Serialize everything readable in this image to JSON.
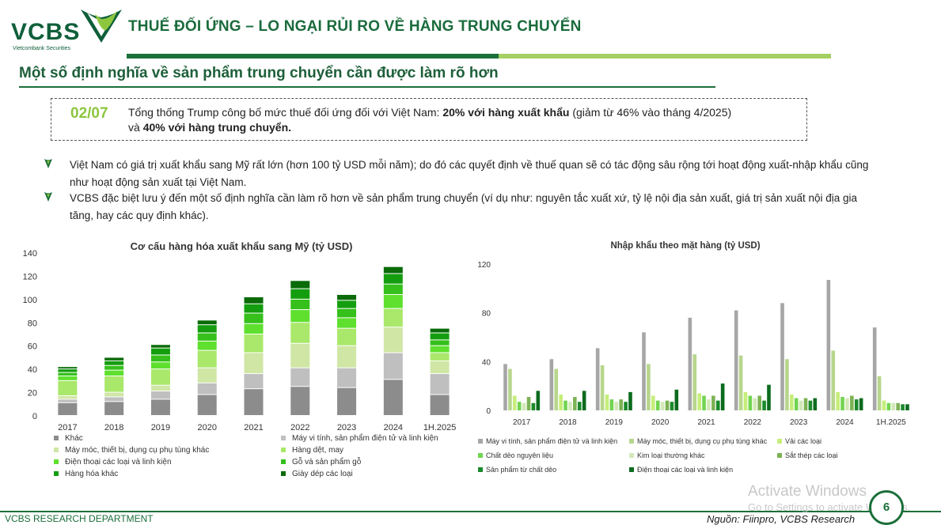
{
  "header": {
    "logo_text": "VCBS",
    "logo_subtext": "Vietcombank Securities",
    "title": "THUẾ ĐỐI ỨNG – LO NGẠI RỦI RO VỀ HÀNG TRUNG CHUYỂN"
  },
  "section": {
    "subtitle": "Một số định nghĩa về sản phẩm trung chuyển cần được làm rõ hơn"
  },
  "notice": {
    "date": "02/07",
    "text_part1": "Tổng thống Trump công bố mức thuế đối ứng đối với Việt Nam: ",
    "text_bold1": "20% với hàng xuất khẩu",
    "text_part2": " (giảm từ 46% vào tháng 4/2025)",
    "text_part3": "và ",
    "text_bold2": "40% với hàng trung chuyển."
  },
  "bullets": [
    "Việt Nam có giá trị xuất khẩu sang Mỹ rất lớn (hơn 100 tỷ USD mỗi năm); do đó các quyết định về thuế quan sẽ có tác động sâu rộng tới hoạt động xuất-nhập khẩu cũng như hoạt động sản xuất tại Việt Nam.",
    "VCBS đặc biệt lưu ý đến một số định nghĩa cần làm rõ hơn về sản phẩm trung chuyển (ví dụ như: nguyên tắc xuất xứ, tỷ lệ nội địa sản xuất, giá trị sản xuất nội địa gia tăng, hay các quy định khác)."
  ],
  "footer": {
    "department": "VCBS RESEARCH DEPARTMENT",
    "source": "Nguồn: Fiinpro, VCBS Research",
    "page_number": "6"
  },
  "overlay": {
    "line1": "Activate Windows",
    "line2": "Go to Settings to activate Windows."
  },
  "colors": {
    "brand_dark": "#1b6f3a",
    "brand_light": "#8dc63f"
  },
  "chart_data": [
    {
      "type": "bar",
      "stacked": true,
      "title": "Cơ cấu hàng hóa xuất khẩu sang Mỹ (tỷ USD)",
      "categories": [
        "2017",
        "2018",
        "2019",
        "2020",
        "2021",
        "2022",
        "2023",
        "2024",
        "1H.2025"
      ],
      "ylim": [
        0,
        140
      ],
      "yticks": [
        0,
        20,
        40,
        60,
        80,
        100,
        120,
        140
      ],
      "legend_position": "bottom",
      "series": [
        {
          "name": "Khác",
          "color": "#8c8c8c",
          "values": [
            11,
            12,
            14,
            18,
            23,
            25,
            24,
            31,
            18
          ]
        },
        {
          "name": "Máy vi tính, sản phẩm điện tử và linh kiện",
          "color": "#bfbfbf",
          "values": [
            3,
            4,
            7,
            10,
            13,
            16,
            17,
            23,
            18
          ]
        },
        {
          "name": "Máy móc, thiết bị, dụng cụ phụ tùng khác",
          "color": "#cfe6a5",
          "values": [
            3,
            4,
            5,
            13,
            18,
            21,
            19,
            22,
            11
          ]
        },
        {
          "name": "Hàng dệt, may",
          "color": "#a9e86a",
          "values": [
            13,
            14,
            14,
            15,
            16,
            18,
            15,
            16,
            7
          ]
        },
        {
          "name": "Điện thoại các loại và linh kiện",
          "color": "#5fe02f",
          "values": [
            4,
            5,
            6,
            8,
            9,
            11,
            9,
            12,
            6
          ]
        },
        {
          "name": "Gỗ và sản phẩm gỗ",
          "color": "#35c01b",
          "values": [
            3,
            4,
            6,
            7,
            9,
            9,
            8,
            9,
            5
          ]
        },
        {
          "name": "Hàng hóa khác",
          "color": "#149e0f",
          "values": [
            3,
            4,
            6,
            7,
            8,
            9,
            7,
            9,
            6
          ]
        },
        {
          "name": "Giày dép các loại",
          "color": "#0a6b08",
          "values": [
            2,
            3,
            3,
            4,
            6,
            7,
            5,
            6,
            4
          ]
        }
      ]
    },
    {
      "type": "bar",
      "stacked": false,
      "title": "Nhập khẩu theo mặt hàng (tỷ USD)",
      "categories": [
        "2017",
        "2018",
        "2019",
        "2020",
        "2021",
        "2022",
        "2023",
        "2024",
        "1H.2025"
      ],
      "ylim": [
        0,
        120
      ],
      "yticks": [
        0,
        40,
        80,
        120
      ],
      "legend_position": "bottom",
      "series": [
        {
          "name": "Máy vi tính, sản phẩm điện tử và linh kiện",
          "color": "#a6a6a6",
          "values": [
            38,
            42,
            51,
            64,
            76,
            82,
            88,
            107,
            68
          ]
        },
        {
          "name": "Máy móc, thiết bị, dụng cụ phụ tùng khác",
          "color": "#b7d68c",
          "values": [
            34,
            34,
            37,
            38,
            46,
            45,
            42,
            49,
            28
          ]
        },
        {
          "name": "Vải các loại",
          "color": "#c6ee7a",
          "values": [
            12,
            13,
            13,
            12,
            14,
            15,
            13,
            15,
            8
          ]
        },
        {
          "name": "Chất dẻo nguyên liệu",
          "color": "#72d450",
          "values": [
            7,
            8,
            9,
            8,
            12,
            12,
            10,
            11,
            6
          ]
        },
        {
          "name": "Kim loại thường khác",
          "color": "#d2e8b8",
          "values": [
            6,
            7,
            7,
            7,
            9,
            10,
            8,
            10,
            6
          ]
        },
        {
          "name": "Sắt thép các loại",
          "color": "#7cb254",
          "values": [
            11,
            11,
            9,
            8,
            12,
            12,
            10,
            12,
            6
          ]
        },
        {
          "name": "Sản phẩm từ chất dẻo",
          "color": "#1a8a2a",
          "values": [
            6,
            7,
            7,
            7,
            8,
            8,
            8,
            9,
            5
          ]
        },
        {
          "name": "Điện thoại các loại và linh kiện",
          "color": "#0c6b1e",
          "values": [
            16,
            16,
            15,
            17,
            22,
            21,
            10,
            10,
            5
          ]
        }
      ]
    }
  ]
}
